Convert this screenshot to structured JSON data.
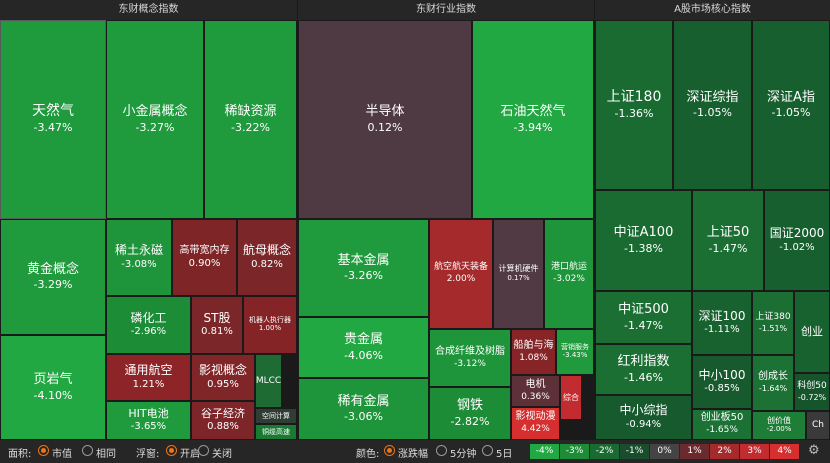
{
  "headers": {
    "concept": "东财概念指数",
    "industry": "东财行业指数",
    "core": "A股市场核心指数"
  },
  "tiles": [
    {
      "name": "天然气",
      "pct": "-3.47%",
      "color": "#1f9a3c"
    },
    {
      "name": "小金属概念",
      "pct": "-3.27%",
      "color": "#1f9a3c"
    },
    {
      "name": "稀缺资源",
      "pct": "-3.22%",
      "color": "#1f9a3c"
    },
    {
      "name": "黄金概念",
      "pct": "-3.29%",
      "color": "#1f9a3c"
    },
    {
      "name": "页岩气",
      "pct": "-4.10%",
      "color": "#22a842"
    },
    {
      "name": "稀土永磁",
      "pct": "-3.08%",
      "color": "#1e953a"
    },
    {
      "name": "高带宽内存",
      "pct": "0.90%",
      "color": "#7e2528"
    },
    {
      "name": "航母概念",
      "pct": "0.82%",
      "color": "#7b2628"
    },
    {
      "name": "磷化工",
      "pct": "-2.96%",
      "color": "#1c8c37"
    },
    {
      "name": "ST股",
      "pct": "0.81%",
      "color": "#7b2628"
    },
    {
      "name": "机器人执行器",
      "pct": "1.00%",
      "color": "#842427"
    },
    {
      "name": "通用航空",
      "pct": "1.21%",
      "color": "#8c2428"
    },
    {
      "name": "影视概念",
      "pct": "0.95%",
      "color": "#802528"
    },
    {
      "name": "MLCC",
      "pct": "",
      "color": "#1f6b34"
    },
    {
      "name": "HIT电池",
      "pct": "-3.65%",
      "color": "#1f9a3c"
    },
    {
      "name": "谷子经济",
      "pct": "0.88%",
      "color": "#7d2528"
    },
    {
      "name": "空间计算",
      "pct": "",
      "color": "#2f3d34"
    },
    {
      "name": "铜缆高速",
      "pct": "",
      "color": "#1a7a33"
    },
    {
      "name": "半导体",
      "pct": "0.12%",
      "color": "#4f3a44"
    },
    {
      "name": "石油天然气",
      "pct": "-3.94%",
      "color": "#22a842"
    },
    {
      "name": "基本金属",
      "pct": "-3.26%",
      "color": "#1f9a3c"
    },
    {
      "name": "航空航天装备",
      "pct": "2.00%",
      "color": "#a52a2c"
    },
    {
      "name": "计算机硬件",
      "pct": "0.17%",
      "color": "#513a44"
    },
    {
      "name": "港口航运",
      "pct": "-3.02%",
      "color": "#1e953a"
    },
    {
      "name": "贵金属",
      "pct": "-4.06%",
      "color": "#22a842"
    },
    {
      "name": "合成纤维及树脂",
      "pct": "-3.12%",
      "color": "#1e953a"
    },
    {
      "name": "船舶与海",
      "pct": "1.08%",
      "color": "#862427"
    },
    {
      "name": "营销服务",
      "pct": "-3.43%",
      "color": "#1f9a3c"
    },
    {
      "name": "稀有金属",
      "pct": "-3.06%",
      "color": "#1e953a"
    },
    {
      "name": "钢铁",
      "pct": "-2.82%",
      "color": "#1c8c37"
    },
    {
      "name": "电机",
      "pct": "0.36%",
      "color": "#5e3038"
    },
    {
      "name": "综合",
      "pct": "",
      "color": "#c22b2f"
    },
    {
      "name": "影视动漫",
      "pct": "4.42%",
      "color": "#d5302f"
    },
    {
      "name": "上证180",
      "pct": "-1.36%",
      "color": "#1a6b31"
    },
    {
      "name": "深证综指",
      "pct": "-1.05%",
      "color": "#175f2e"
    },
    {
      "name": "深证A指",
      "pct": "-1.05%",
      "color": "#175f2e"
    },
    {
      "name": "中证A100",
      "pct": "-1.38%",
      "color": "#1a6b31"
    },
    {
      "name": "上证50",
      "pct": "-1.47%",
      "color": "#1b6f33"
    },
    {
      "name": "国证2000",
      "pct": "-1.02%",
      "color": "#175f2e"
    },
    {
      "name": "中证500",
      "pct": "-1.47%",
      "color": "#1b6f33"
    },
    {
      "name": "深证100",
      "pct": "-1.11%",
      "color": "#186230"
    },
    {
      "name": "上证380",
      "pct": "-1.51%",
      "color": "#1b6f33"
    },
    {
      "name": "创业",
      "pct": "",
      "color": "#186230"
    },
    {
      "name": "红利指数",
      "pct": "-1.46%",
      "color": "#1b6f33"
    },
    {
      "name": "中小100",
      "pct": "-0.85%",
      "color": "#175a2d"
    },
    {
      "name": "创成长",
      "pct": "-1.64%",
      "color": "#1c7234"
    },
    {
      "name": "科创50",
      "pct": "-0.72%",
      "color": "#16552c"
    },
    {
      "name": "中小综指",
      "pct": "-0.94%",
      "color": "#175a2d"
    },
    {
      "name": "创业板50",
      "pct": "-1.65%",
      "color": "#1c7234"
    },
    {
      "name": "创价值",
      "pct": "-2.00%",
      "color": "#1e7d36"
    },
    {
      "name": "Ch",
      "pct": "",
      "color": "#3a3a3a"
    }
  ],
  "toolbar": {
    "area_label": "面积:",
    "area_opt1": "市值",
    "area_opt2": "相同",
    "float_label": "浮窗:",
    "float_opt1": "开启",
    "float_opt2": "关闭",
    "color_label": "颜色:",
    "color_opt1": "涨跌幅",
    "color_opt2": "5分钟",
    "color_opt3": "5日"
  },
  "legend": [
    {
      "label": "-4%",
      "color": "#22a842"
    },
    {
      "label": "-3%",
      "color": "#1c8c37"
    },
    {
      "label": "-2%",
      "color": "#1a6b31"
    },
    {
      "label": "-1%",
      "color": "#1a4d2b"
    },
    {
      "label": "0%",
      "color": "#444444"
    },
    {
      "label": "1%",
      "color": "#6b2a2e"
    },
    {
      "label": "2%",
      "color": "#a52a2c"
    },
    {
      "label": "3%",
      "color": "#c22b2f"
    },
    {
      "label": "4%",
      "color": "#d5302f"
    }
  ]
}
